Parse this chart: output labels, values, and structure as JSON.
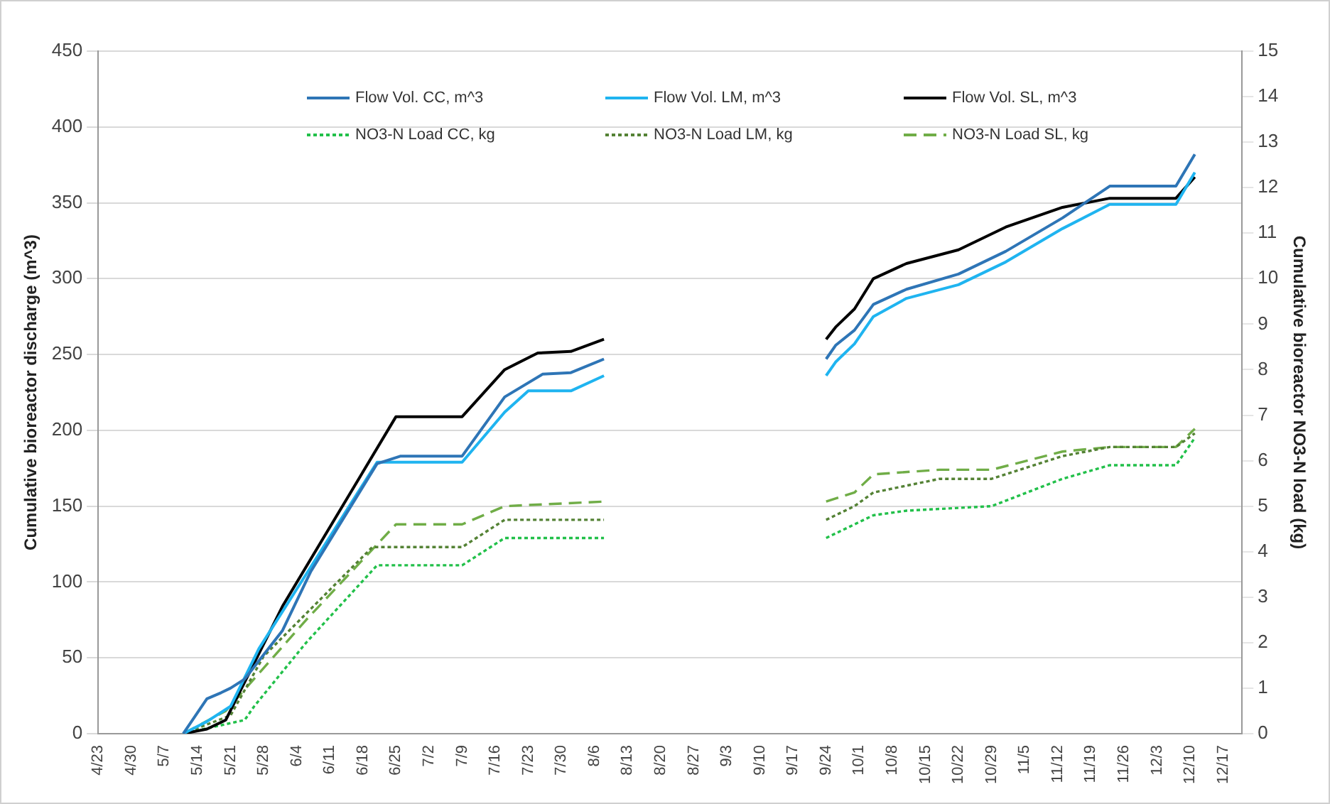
{
  "chart_data": {
    "type": "line",
    "ylabel": "Cumulative bioreactor discharge (m^3)",
    "y2label": "Cumulative bioreactor NO3-N load (kg)",
    "xlim": [
      "--04-23",
      "--12-21"
    ],
    "xticks": [
      {
        "value": "--04-23",
        "label": "4/23"
      },
      {
        "value": "--04-30",
        "label": "4/30"
      },
      {
        "value": "--05-07",
        "label": "5/7"
      },
      {
        "value": "--05-14",
        "label": "5/14"
      },
      {
        "value": "--05-21",
        "label": "5/21"
      },
      {
        "value": "--05-28",
        "label": "5/28"
      },
      {
        "value": "--06-04",
        "label": "6/4"
      },
      {
        "value": "--06-11",
        "label": "6/11"
      },
      {
        "value": "--06-18",
        "label": "6/18"
      },
      {
        "value": "--06-25",
        "label": "6/25"
      },
      {
        "value": "--07-02",
        "label": "7/2"
      },
      {
        "value": "--07-09",
        "label": "7/9"
      },
      {
        "value": "--07-16",
        "label": "7/16"
      },
      {
        "value": "--07-23",
        "label": "7/23"
      },
      {
        "value": "--07-30",
        "label": "7/30"
      },
      {
        "value": "--08-06",
        "label": "8/6"
      },
      {
        "value": "--08-13",
        "label": "8/13"
      },
      {
        "value": "--08-20",
        "label": "8/20"
      },
      {
        "value": "--08-27",
        "label": "8/27"
      },
      {
        "value": "--09-03",
        "label": "9/3"
      },
      {
        "value": "--09-10",
        "label": "9/10"
      },
      {
        "value": "--09-17",
        "label": "9/17"
      },
      {
        "value": "--09-24",
        "label": "9/24"
      },
      {
        "value": "--10-01",
        "label": "10/1"
      },
      {
        "value": "--10-08",
        "label": "10/8"
      },
      {
        "value": "--10-15",
        "label": "10/15"
      },
      {
        "value": "--10-22",
        "label": "10/22"
      },
      {
        "value": "--10-29",
        "label": "10/29"
      },
      {
        "value": "--11-05",
        "label": "11/5"
      },
      {
        "value": "--11-12",
        "label": "11/12"
      },
      {
        "value": "--11-19",
        "label": "11/19"
      },
      {
        "value": "--11-26",
        "label": "11/26"
      },
      {
        "value": "--12-03",
        "label": "12/3"
      },
      {
        "value": "--12-10",
        "label": "12/10"
      },
      {
        "value": "--12-17",
        "label": "12/17"
      }
    ],
    "ylim": [
      0,
      450
    ],
    "yticks": [
      0,
      50,
      100,
      150,
      200,
      250,
      300,
      350,
      400,
      450
    ],
    "y2lim": [
      0,
      15
    ],
    "y2ticks": [
      0,
      1,
      2,
      3,
      4,
      5,
      6,
      7,
      8,
      9,
      10,
      11,
      12,
      13,
      14,
      15
    ],
    "grid": "y",
    "legend": "top",
    "marker": "none",
    "series": [
      {
        "name": "Flow Vol. CC, m^3",
        "color": "#2e75b6",
        "line_style": "solid",
        "x": [
          "--05-11",
          "--05-16",
          "--05-19",
          "--05-21",
          "--05-24",
          "--06-01",
          "--06-07",
          "--06-21",
          "--06-26",
          "--07-09",
          "--07-18",
          "--07-26",
          "--08-01",
          "--08-08",
          "--08-31",
          "--09-24",
          "--09-26",
          "--09-30",
          "--10-04",
          "--10-11",
          "--10-22",
          "--11-01",
          "--11-13",
          "--11-23",
          "--12-07",
          "--12-11"
        ],
        "values": [
          0,
          23,
          27,
          30,
          36,
          68,
          107,
          178,
          183,
          183,
          222,
          237,
          238,
          247,
          null,
          247,
          256,
          266,
          283,
          293,
          303,
          318,
          340,
          361,
          361,
          382
        ]
      },
      {
        "name": "Flow Vol. LM, m^3",
        "color": "#1fb4f0",
        "line_style": "solid",
        "x": [
          "--05-11",
          "--05-16",
          "--05-21",
          "--05-27",
          "--06-07",
          "--06-21",
          "--07-09",
          "--07-18",
          "--07-23",
          "--08-01",
          "--08-08",
          "--08-31",
          "--09-24",
          "--09-26",
          "--09-30",
          "--10-04",
          "--10-11",
          "--10-22",
          "--11-01",
          "--11-13",
          "--11-23",
          "--12-07",
          "--12-11"
        ],
        "values": [
          0,
          8,
          18,
          56,
          110,
          179,
          179,
          212,
          226,
          226,
          236,
          null,
          236,
          245,
          257,
          275,
          287,
          296,
          311,
          333,
          349,
          349,
          370
        ]
      },
      {
        "name": "Flow Vol. SL, m^3",
        "color": "#000000",
        "line_style": "solid",
        "x": [
          "--05-11",
          "--05-16",
          "--05-20",
          "--06-01",
          "--06-25",
          "--07-09",
          "--07-18",
          "--07-25",
          "--08-01",
          "--08-08",
          "--08-31",
          "--09-24",
          "--09-26",
          "--09-30",
          "--10-04",
          "--10-11",
          "--10-22",
          "--11-01",
          "--11-13",
          "--11-23",
          "--12-07",
          "--12-11"
        ],
        "values": [
          0,
          3,
          9,
          84,
          209,
          209,
          240,
          251,
          252,
          260,
          null,
          260,
          268,
          280,
          300,
          310,
          319,
          334,
          347,
          353,
          353,
          367
        ]
      },
      {
        "name": "NO3-N Load CC, kg",
        "color": "#22c04a",
        "line_style": "dotted",
        "axis": "y2",
        "x": [
          "--05-11",
          "--05-24",
          "--05-26",
          "--06-06",
          "--06-21",
          "--07-09",
          "--07-18",
          "--08-08",
          "--08-31",
          "--09-24",
          "--09-30",
          "--10-04",
          "--10-11",
          "--10-29",
          "--11-13",
          "--11-23",
          "--12-07",
          "--12-11"
        ],
        "values": [
          0,
          0.3,
          0.6,
          2.0,
          3.7,
          3.7,
          4.3,
          4.3,
          null,
          4.3,
          4.6,
          4.8,
          4.9,
          5.0,
          5.6,
          5.9,
          5.9,
          6.5
        ]
      },
      {
        "name": "NO3-N Load LM, kg",
        "color": "#548235",
        "line_style": "dotted",
        "axis": "y2",
        "x": [
          "--05-11",
          "--05-21",
          "--05-28",
          "--06-20",
          "--07-09",
          "--07-18",
          "--08-08",
          "--08-31",
          "--09-24",
          "--09-30",
          "--10-04",
          "--10-18",
          "--10-29",
          "--11-13",
          "--11-23",
          "--12-07",
          "--12-11"
        ],
        "values": [
          0,
          0.4,
          1.7,
          4.1,
          4.1,
          4.7,
          4.7,
          null,
          4.7,
          5.0,
          5.3,
          5.6,
          5.6,
          6.1,
          6.3,
          6.3,
          6.6
        ]
      },
      {
        "name": "NO3-N Load SL, kg",
        "color": "#70ad47",
        "line_style": "dashed",
        "axis": "y2",
        "x": [
          "--05-11",
          "--05-20",
          "--06-06",
          "--06-25",
          "--07-09",
          "--07-18",
          "--08-08",
          "--08-31",
          "--09-24",
          "--09-30",
          "--10-04",
          "--10-18",
          "--10-29",
          "--11-13",
          "--11-23",
          "--12-07",
          "--12-11"
        ],
        "values": [
          0,
          0.5,
          2.5,
          4.6,
          4.6,
          5.0,
          5.1,
          null,
          5.1,
          5.3,
          5.7,
          5.8,
          5.8,
          6.2,
          6.3,
          6.3,
          6.7
        ]
      }
    ]
  }
}
